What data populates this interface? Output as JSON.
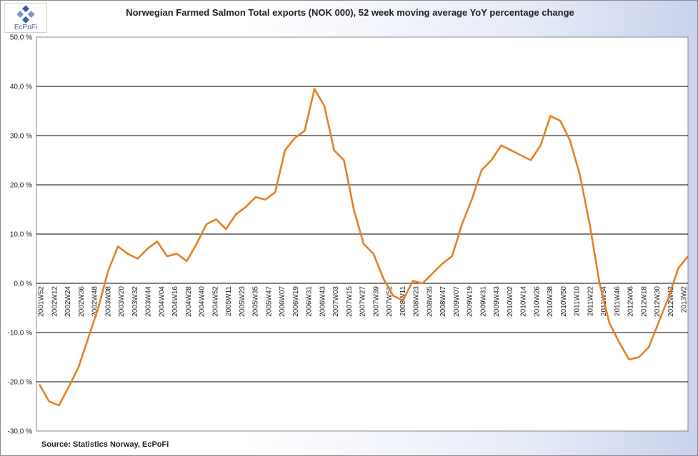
{
  "logo": {
    "text": "EcPoFi"
  },
  "source": "Source: Statistics Norway, EcPoFi",
  "colors": {
    "series": "#e87f22",
    "grid": "#000000",
    "plot_bg": "#ffffff"
  },
  "chart_data": {
    "type": "line",
    "title": "Norwegian Farmed Salmon Total exports (NOK 000), 52 week moving average YoY percentage change",
    "xlabel": "",
    "ylabel": "",
    "ylim": [
      -30,
      50
    ],
    "y_ticks": [
      -30,
      -20,
      -10,
      0,
      10,
      20,
      30,
      40,
      50
    ],
    "y_tick_labels": [
      "-30,0 %",
      "-20,0 %",
      "-10,0 %",
      "0,0 %",
      "10,0 %",
      "20,0 %",
      "30,0 %",
      "40,0 %",
      "50,0 %"
    ],
    "grid": true,
    "legend": "none",
    "x_tick_labels": [
      "2001W52",
      "2002W12",
      "2002W24",
      "2002W36",
      "2002W48",
      "2003W08",
      "2003W20",
      "2003W32",
      "2003W44",
      "2004W04",
      "2004W16",
      "2004W28",
      "2004W40",
      "2004W52",
      "2005W11",
      "2005W23",
      "2005W35",
      "2005W47",
      "2006W07",
      "2006W19",
      "2006W31",
      "2006W43",
      "2007W03",
      "2007W15",
      "2007W27",
      "2007W39",
      "2007W51",
      "2008W11",
      "2008W23",
      "2008W35",
      "2008W47",
      "2009W07",
      "2009W19",
      "2009W31",
      "2009W43",
      "2010W02",
      "2010W14",
      "2010W26",
      "2010W38",
      "2010W50",
      "2011W10",
      "2011W22",
      "2011W34",
      "2011W46",
      "2012W06",
      "2012W18",
      "2012W30",
      "2012W42",
      "2013W2"
    ],
    "series": [
      {
        "values": [
          -20.5,
          -24.0,
          -24.8,
          -21.0,
          -17.0,
          -11.0,
          -5.0,
          2.5,
          7.5,
          6.0,
          5.0,
          7.0,
          8.5,
          5.5,
          6.0,
          4.5,
          8.0,
          12.0,
          13.0,
          11.0,
          14.0,
          15.5,
          17.5,
          17.0,
          18.5,
          27.0,
          29.5,
          31.0,
          39.5,
          36.0,
          27.0,
          25.0,
          15.0,
          8.0,
          6.0,
          1.0,
          -2.5,
          -3.5,
          0.5,
          0.0,
          2.0,
          4.0,
          5.5,
          12.0,
          17.0,
          23.0,
          25.0,
          28.0,
          27.0,
          26.0,
          25.0,
          28.0,
          34.0,
          33.0,
          29.0,
          22.0,
          12.0,
          0.0,
          -8.0,
          -12.0,
          -15.5,
          -15.0,
          -13.0,
          -8.0,
          -3.0,
          3.0,
          5.5
        ]
      }
    ]
  }
}
